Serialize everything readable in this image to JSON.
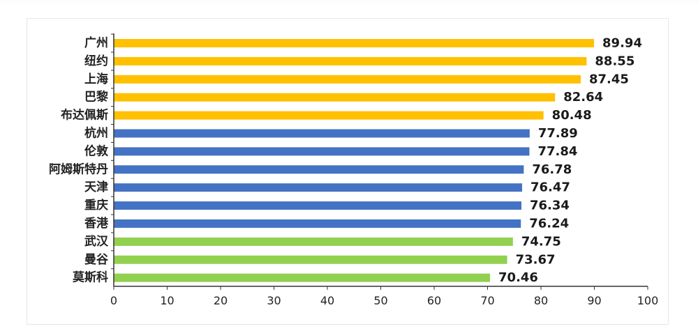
{
  "chart_data": {
    "type": "bar",
    "orientation": "horizontal",
    "categories": [
      "广州",
      "纽约",
      "上海",
      "巴黎",
      "布达佩斯",
      "杭州",
      "伦敦",
      "阿姆斯特丹",
      "天津",
      "重庆",
      "香港",
      "武汉",
      "曼谷",
      "莫斯科"
    ],
    "values": [
      89.94,
      88.55,
      87.45,
      82.64,
      80.48,
      77.89,
      77.84,
      76.78,
      76.47,
      76.34,
      76.24,
      74.75,
      73.67,
      70.46
    ],
    "value_labels": [
      "89.94",
      "88.55",
      "87.45",
      "82.64",
      "80.48",
      "77.89",
      "77.84",
      "76.78",
      "76.47",
      "76.34",
      "76.24",
      "74.75",
      "73.67",
      "70.46"
    ],
    "bar_colors": [
      "#ffc000",
      "#ffc000",
      "#ffc000",
      "#ffc000",
      "#ffc000",
      "#4472c4",
      "#4472c4",
      "#4472c4",
      "#4472c4",
      "#4472c4",
      "#4472c4",
      "#92d050",
      "#92d050",
      "#92d050"
    ],
    "xlim": [
      0,
      100
    ],
    "xticks": [
      0,
      10,
      20,
      30,
      40,
      50,
      60,
      70,
      80,
      90,
      100
    ],
    "grid": false,
    "legend": "none",
    "title": "",
    "xlabel": "",
    "ylabel": ""
  },
  "colors": {
    "axis": "#333333"
  }
}
